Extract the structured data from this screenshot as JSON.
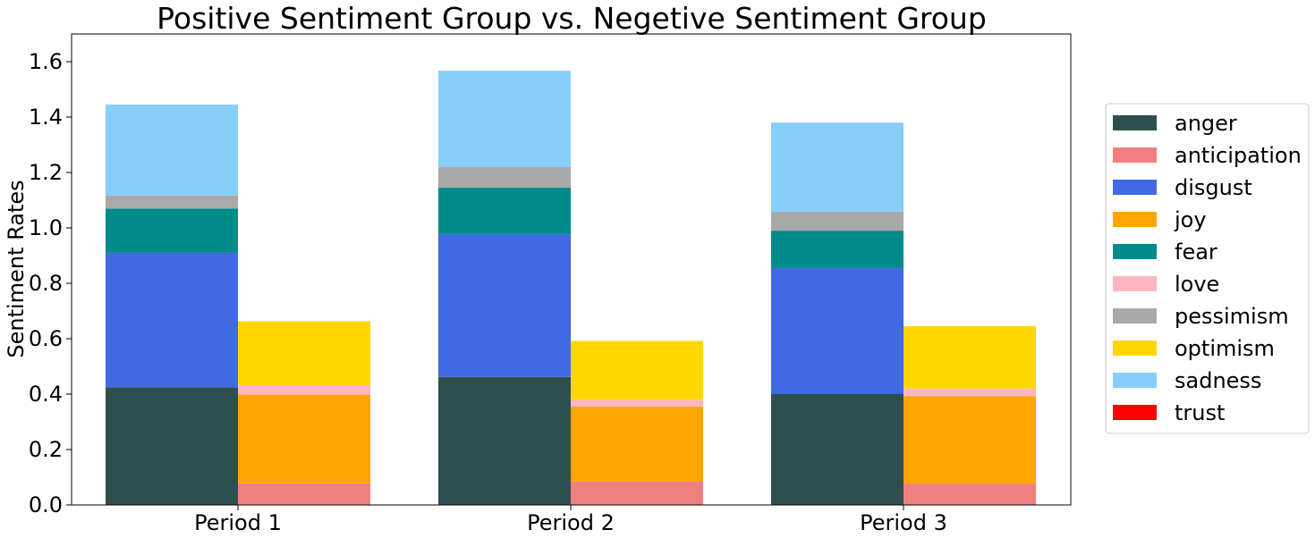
{
  "chart_data": {
    "type": "bar",
    "stacked": true,
    "title": "Positive Sentiment Group vs. Negetive Sentiment Group",
    "xlabel": "",
    "ylabel": "Sentiment Rates",
    "categories": [
      "Period 1",
      "Period 2",
      "Period 3"
    ],
    "ylim": [
      0,
      1.7
    ],
    "yticks": [
      "0.0",
      "0.2",
      "0.4",
      "0.6",
      "0.8",
      "1.0",
      "1.2",
      "1.4",
      "1.6"
    ],
    "grid": false,
    "legend_position": "right",
    "groups": [
      {
        "group": "negative",
        "series": [
          {
            "name": "anger",
            "color": "#2f4f4f",
            "values": [
              0.425,
              0.462,
              0.4
            ]
          },
          {
            "name": "disgust",
            "color": "#4169e1",
            "values": [
              0.485,
              0.515,
              0.455
            ]
          },
          {
            "name": "fear",
            "color": "#008b8b",
            "values": [
              0.16,
              0.168,
              0.135
            ]
          },
          {
            "name": "pessimism",
            "color": "#a9a9a9",
            "values": [
              0.047,
              0.075,
              0.068
            ]
          },
          {
            "name": "sadness",
            "color": "#87cefa",
            "values": [
              0.328,
              0.347,
              0.322
            ]
          }
        ]
      },
      {
        "group": "positive",
        "series": [
          {
            "name": "anticipation",
            "color": "#f08080",
            "values": [
              0.078,
              0.085,
              0.077
            ]
          },
          {
            "name": "joy",
            "color": "#ffa500",
            "values": [
              0.32,
              0.27,
              0.315
            ]
          },
          {
            "name": "love",
            "color": "#ffb6c1",
            "values": [
              0.035,
              0.025,
              0.028
            ]
          },
          {
            "name": "optimism",
            "color": "#ffd700",
            "values": [
              0.23,
              0.212,
              0.225
            ]
          },
          {
            "name": "trust",
            "color": "#ff0000",
            "values": [
              0.0,
              0.0,
              0.0
            ]
          }
        ]
      }
    ],
    "legend": [
      {
        "name": "anger",
        "color": "#2f4f4f"
      },
      {
        "name": "anticipation",
        "color": "#f08080"
      },
      {
        "name": "disgust",
        "color": "#4169e1"
      },
      {
        "name": "joy",
        "color": "#ffa500"
      },
      {
        "name": "fear",
        "color": "#008b8b"
      },
      {
        "name": "love",
        "color": "#ffb6c1"
      },
      {
        "name": "pessimism",
        "color": "#a9a9a9"
      },
      {
        "name": "optimism",
        "color": "#ffd700"
      },
      {
        "name": "sadness",
        "color": "#87cefa"
      },
      {
        "name": "trust",
        "color": "#ff0000"
      }
    ]
  }
}
